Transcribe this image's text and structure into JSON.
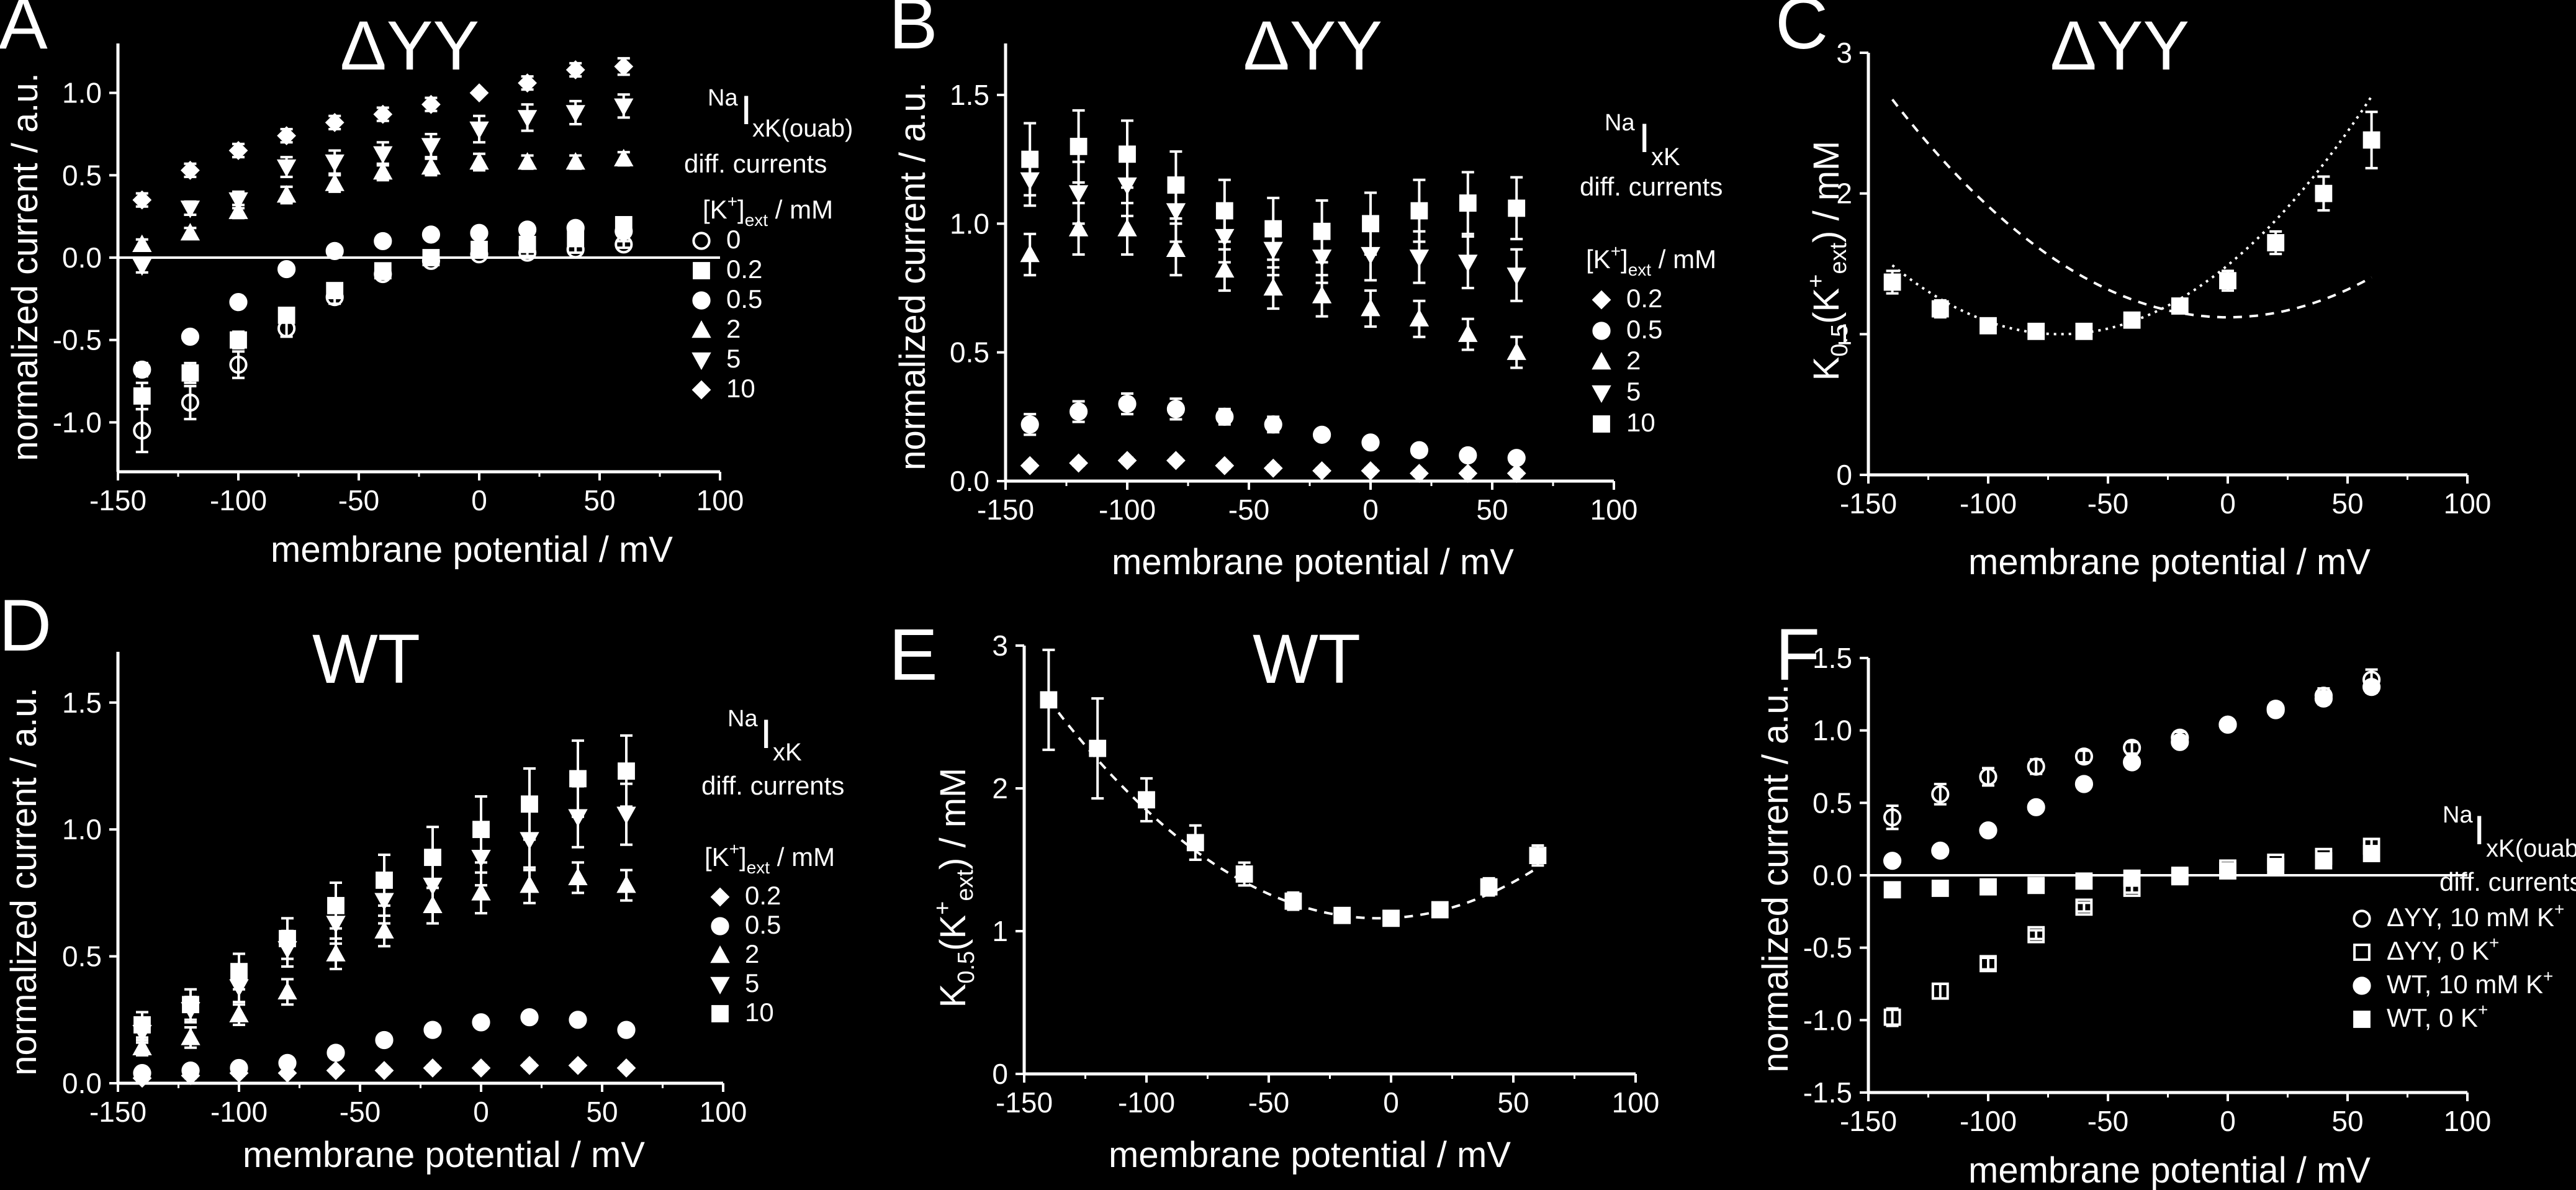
{
  "chart_data": [
    {
      "panel": "A",
      "type": "scatter",
      "title": "ΔYY",
      "xlabel": "membrane potential / mV",
      "ylabel": "normalized current / a.u.",
      "xlim": [
        -150,
        100
      ],
      "ylim": [
        -1.3,
        1.3
      ],
      "xticks": [
        "-150",
        "-100",
        "-50",
        "0",
        "50",
        "100"
      ],
      "yticks": [
        "-1.0",
        "-0.5",
        "0.0",
        "0.5",
        "1.0"
      ],
      "zero_line": true,
      "grid": false,
      "legend": {
        "position": "right",
        "header1_sup": "Na",
        "header1_main": "I",
        "header1_sub": "xK(ouab)",
        "header2": "diff. currents",
        "header3": "[K",
        "header3_sup": "+",
        "header3_sub": "]",
        "header3_tail": "ext",
        "header3_unit": " / mM"
      },
      "x": [
        -140,
        -120,
        -100,
        -80,
        -60,
        -40,
        -20,
        0,
        20,
        40,
        60
      ],
      "series": [
        {
          "name": "0",
          "marker": "circle-open",
          "values": [
            -1.05,
            -0.88,
            -0.65,
            -0.43,
            -0.24,
            -0.1,
            -0.02,
            0.02,
            0.03,
            0.05,
            0.08
          ],
          "err": [
            0.13,
            0.1,
            0.08,
            0.05,
            0.04,
            0.03,
            0.02,
            0.02,
            0.02,
            0.02,
            0.02
          ]
        },
        {
          "name": "0.2",
          "marker": "square",
          "values": [
            -0.84,
            -0.7,
            -0.5,
            -0.35,
            -0.2,
            -0.08,
            0.0,
            0.05,
            0.08,
            0.12,
            0.2
          ],
          "err": [
            0.08,
            0.06,
            0.05,
            0.04,
            0.03,
            0.03,
            0.02,
            0.02,
            0.02,
            0.02,
            0.03
          ]
        },
        {
          "name": "0.5",
          "marker": "circle",
          "values": [
            -0.68,
            -0.48,
            -0.27,
            -0.07,
            0.04,
            0.1,
            0.14,
            0.15,
            0.17,
            0.18,
            0.16
          ],
          "err": [
            0.04,
            0.03,
            0.02,
            0.02,
            0.02,
            0.02,
            0.02,
            0.02,
            0.02,
            0.02,
            0.02
          ]
        },
        {
          "name": "2",
          "marker": "triangle-up",
          "values": [
            0.08,
            0.15,
            0.28,
            0.38,
            0.45,
            0.52,
            0.55,
            0.58,
            0.58,
            0.58,
            0.6
          ],
          "err": [
            0.03,
            0.03,
            0.04,
            0.05,
            0.05,
            0.05,
            0.05,
            0.05,
            0.04,
            0.04,
            0.04
          ]
        },
        {
          "name": "5",
          "marker": "triangle-down",
          "values": [
            -0.05,
            0.3,
            0.35,
            0.55,
            0.58,
            0.63,
            0.68,
            0.78,
            0.85,
            0.88,
            0.92
          ],
          "err": [
            0.04,
            0.04,
            0.05,
            0.06,
            0.07,
            0.07,
            0.07,
            0.08,
            0.08,
            0.07,
            0.07
          ]
        },
        {
          "name": "10",
          "marker": "diamond",
          "values": [
            0.35,
            0.53,
            0.65,
            0.74,
            0.82,
            0.87,
            0.93,
            1.0,
            1.06,
            1.14,
            1.16
          ],
          "err": [
            0.04,
            0.04,
            0.04,
            0.04,
            0.04,
            0.04,
            0.04,
            0.0,
            0.04,
            0.04,
            0.05
          ]
        }
      ]
    },
    {
      "panel": "B",
      "type": "scatter",
      "title": "ΔYY",
      "xlabel": "membrane potential / mV",
      "ylabel": "normalized current / a.u.",
      "xlim": [
        -150,
        100
      ],
      "ylim": [
        0,
        1.7
      ],
      "xticks": [
        "-150",
        "-100",
        "-50",
        "0",
        "50",
        "100"
      ],
      "yticks": [
        "0.0",
        "0.5",
        "1.0",
        "1.5"
      ],
      "zero_line": false,
      "grid": false,
      "legend": {
        "position": "right",
        "header1_sup": "Na",
        "header1_main": "I",
        "header1_sub": "xK",
        "header2": "diff. currents",
        "header3": "[K",
        "header3_sup": "+",
        "header3_sub": "]",
        "header3_tail": "ext",
        "header3_unit": " / mM"
      },
      "x": [
        -140,
        -120,
        -100,
        -80,
        -60,
        -40,
        -20,
        0,
        20,
        40,
        60
      ],
      "series": [
        {
          "name": "0.2",
          "marker": "diamond",
          "values": [
            0.06,
            0.07,
            0.08,
            0.08,
            0.06,
            0.05,
            0.04,
            0.04,
            0.03,
            0.03,
            0.03
          ],
          "err": [
            0.01,
            0.01,
            0.01,
            0.01,
            0.01,
            0.01,
            0.01,
            0.01,
            0.01,
            0.01,
            0.01
          ]
        },
        {
          "name": "0.5",
          "marker": "circle",
          "values": [
            0.22,
            0.27,
            0.3,
            0.28,
            0.25,
            0.22,
            0.18,
            0.15,
            0.12,
            0.1,
            0.09
          ],
          "err": [
            0.04,
            0.04,
            0.04,
            0.04,
            0.03,
            0.03,
            0.02,
            0.02,
            0.02,
            0.02,
            0.02
          ]
        },
        {
          "name": "2",
          "marker": "triangle-up",
          "values": [
            0.88,
            0.98,
            0.98,
            0.9,
            0.82,
            0.75,
            0.72,
            0.67,
            0.63,
            0.57,
            0.5
          ],
          "err": [
            0.08,
            0.1,
            0.1,
            0.1,
            0.08,
            0.08,
            0.08,
            0.07,
            0.07,
            0.06,
            0.06
          ]
        },
        {
          "name": "5",
          "marker": "triangle-down",
          "values": [
            1.17,
            1.12,
            1.15,
            1.05,
            0.95,
            0.9,
            0.87,
            0.88,
            0.87,
            0.85,
            0.8
          ],
          "err": [
            0.1,
            0.12,
            0.12,
            0.12,
            0.1,
            0.1,
            0.1,
            0.1,
            0.1,
            0.1,
            0.1
          ]
        },
        {
          "name": "10",
          "marker": "square",
          "values": [
            1.25,
            1.3,
            1.27,
            1.15,
            1.05,
            0.98,
            0.97,
            1.0,
            1.05,
            1.08,
            1.06
          ],
          "err": [
            0.14,
            0.14,
            0.13,
            0.13,
            0.12,
            0.12,
            0.12,
            0.12,
            0.12,
            0.12,
            0.12
          ]
        }
      ]
    },
    {
      "panel": "C",
      "type": "scatter",
      "title": "ΔYY",
      "xlabel": "membrane potential / mV",
      "ylabel_main": "K",
      "ylabel_sub": "0.5",
      "ylabel_mid": "(K",
      "ylabel_sup2": "+",
      "ylabel_sub2": "ext",
      "ylabel_tail": ") / mM",
      "xlim": [
        -150,
        100
      ],
      "ylim": [
        0,
        3
      ],
      "xticks": [
        "-150",
        "-100",
        "-50",
        "0",
        "50",
        "100"
      ],
      "yticks": [
        "0",
        "1",
        "2",
        "3"
      ],
      "grid": false,
      "x": [
        -140,
        -120,
        -100,
        -80,
        -60,
        -40,
        -20,
        0,
        20,
        40,
        60
      ],
      "values": [
        1.37,
        1.18,
        1.06,
        1.02,
        1.02,
        1.1,
        1.2,
        1.38,
        1.65,
        2.0,
        2.38
      ],
      "err": [
        0.08,
        0.06,
        0.05,
        0.05,
        0.05,
        0.05,
        0.05,
        0.07,
        0.08,
        0.12,
        0.2
      ],
      "fit_quadratic": {
        "vertex_x": -70,
        "vertex_y": 1.0,
        "a": 0.0001,
        "x_range": [
          -140,
          60
        ],
        "style": "dotted"
      },
      "reference_curve": {
        "vertex_x": 0,
        "vertex_y": 1.12,
        "a": 7.9e-05,
        "x_range": [
          -140,
          60
        ],
        "style": "dashed"
      }
    },
    {
      "panel": "D",
      "type": "scatter",
      "title": "WT",
      "xlabel": "membrane potential / mV",
      "ylabel": "normalized current / a.u.",
      "xlim": [
        -150,
        100
      ],
      "ylim": [
        0,
        1.7
      ],
      "xticks": [
        "-150",
        "-100",
        "-50",
        "0",
        "50",
        "100"
      ],
      "yticks": [
        "0.0",
        "0.5",
        "1.0",
        "1.5"
      ],
      "zero_line": false,
      "grid": false,
      "legend": {
        "position": "right",
        "header1_sup": "Na",
        "header1_main": "I",
        "header1_sub": "xK",
        "header2": "diff. currents",
        "header3": "[K",
        "header3_sup": "+",
        "header3_sub": "]",
        "header3_tail": "ext",
        "header3_unit": " / mM"
      },
      "x": [
        -140,
        -120,
        -100,
        -80,
        -60,
        -40,
        -20,
        0,
        20,
        40,
        60
      ],
      "series": [
        {
          "name": "0.2",
          "marker": "diamond",
          "values": [
            0.02,
            0.03,
            0.04,
            0.04,
            0.05,
            0.05,
            0.06,
            0.06,
            0.07,
            0.07,
            0.06
          ],
          "err": [
            0.01,
            0.01,
            0.01,
            0.01,
            0.01,
            0.01,
            0.01,
            0.01,
            0.01,
            0.01,
            0.01
          ]
        },
        {
          "name": "0.5",
          "marker": "circle",
          "values": [
            0.04,
            0.05,
            0.06,
            0.08,
            0.12,
            0.17,
            0.21,
            0.24,
            0.26,
            0.25,
            0.21
          ],
          "err": [
            0.01,
            0.01,
            0.01,
            0.01,
            0.02,
            0.02,
            0.02,
            0.02,
            0.02,
            0.02,
            0.02
          ]
        },
        {
          "name": "2",
          "marker": "triangle-up",
          "values": [
            0.14,
            0.18,
            0.27,
            0.36,
            0.51,
            0.6,
            0.7,
            0.75,
            0.78,
            0.81,
            0.78
          ],
          "err": [
            0.03,
            0.04,
            0.04,
            0.05,
            0.06,
            0.06,
            0.07,
            0.08,
            0.07,
            0.06,
            0.06
          ]
        },
        {
          "name": "5",
          "marker": "triangle-down",
          "values": [
            0.2,
            0.29,
            0.38,
            0.53,
            0.63,
            0.72,
            0.78,
            0.89,
            0.96,
            1.05,
            1.06
          ],
          "err": [
            0.04,
            0.05,
            0.06,
            0.07,
            0.08,
            0.09,
            0.1,
            0.11,
            0.12,
            0.12,
            0.12
          ]
        },
        {
          "name": "10",
          "marker": "square",
          "values": [
            0.23,
            0.31,
            0.44,
            0.57,
            0.7,
            0.8,
            0.89,
            1.0,
            1.1,
            1.2,
            1.23
          ],
          "err": [
            0.05,
            0.06,
            0.07,
            0.08,
            0.09,
            0.1,
            0.12,
            0.13,
            0.14,
            0.15,
            0.14
          ]
        }
      ]
    },
    {
      "panel": "E",
      "type": "scatter",
      "title": "WT",
      "xlabel": "membrane potential / mV",
      "ylabel_main": "K",
      "ylabel_sub": "0.5",
      "ylabel_mid": "(K",
      "ylabel_sup2": "+",
      "ylabel_sub2": "ext",
      "ylabel_tail": ") / mM",
      "xlim": [
        -150,
        100
      ],
      "ylim": [
        0,
        3
      ],
      "xticks": [
        "-150",
        "-100",
        "-50",
        "0",
        "50",
        "100"
      ],
      "yticks": [
        "0",
        "1",
        "2",
        "3"
      ],
      "grid": false,
      "x": [
        -140,
        -120,
        -100,
        -80,
        -60,
        -40,
        -20,
        0,
        20,
        40,
        60
      ],
      "values": [
        2.62,
        2.28,
        1.92,
        1.62,
        1.4,
        1.21,
        1.11,
        1.09,
        1.15,
        1.31,
        1.53
      ],
      "err": [
        0.35,
        0.35,
        0.15,
        0.12,
        0.08,
        0.06,
        0.04,
        0.04,
        0.05,
        0.06,
        0.07
      ],
      "fit_quadratic": {
        "vertex_x": -5,
        "vertex_y": 1.09,
        "a": 8.4e-05,
        "x_range": [
          -140,
          60
        ],
        "style": "dashed"
      }
    },
    {
      "panel": "F",
      "type": "scatter",
      "xlabel": "membrane potential / mV",
      "ylabel": "normalized current / a.u.",
      "xlim": [
        -150,
        100
      ],
      "ylim": [
        -1.5,
        1.5
      ],
      "xticks": [
        "-150",
        "-100",
        "-50",
        "0",
        "50",
        "100"
      ],
      "yticks": [
        "-1.5",
        "-1.0",
        "-0.5",
        "0.0",
        "0.5",
        "1.0",
        "1.5"
      ],
      "zero_line": true,
      "grid": false,
      "legend": {
        "position": "bottom-right",
        "header1_sup": "Na",
        "header1_main": "I",
        "header1_sub": "xK(ouab)",
        "header2": "diff. currents"
      },
      "x": [
        -140,
        -120,
        -100,
        -80,
        -60,
        -40,
        -20,
        0,
        20,
        40,
        60
      ],
      "series": [
        {
          "name": "ΔYY, 10 mM K",
          "name_sup": "+",
          "marker": "circle-open",
          "values": [
            0.4,
            0.56,
            0.68,
            0.75,
            0.82,
            0.88,
            0.95,
            1.04,
            1.15,
            1.24,
            1.35
          ],
          "err": [
            0.08,
            0.07,
            0.06,
            0.05,
            0.04,
            0.04,
            0.04,
            0.03,
            0.04,
            0.05,
            0.07
          ]
        },
        {
          "name": "ΔYY, 0 K",
          "name_sup": "+",
          "marker": "square-open",
          "values": [
            -0.98,
            -0.8,
            -0.61,
            -0.41,
            -0.22,
            -0.09,
            -0.01,
            0.05,
            0.09,
            0.13,
            0.2
          ],
          "err": [
            0.06,
            0.05,
            0.04,
            0.03,
            0.03,
            0.03,
            0.02,
            0.02,
            0.02,
            0.02,
            0.05
          ]
        },
        {
          "name": "WT, 10 mM K",
          "name_sup": "+",
          "marker": "circle",
          "values": [
            0.1,
            0.17,
            0.31,
            0.47,
            0.63,
            0.78,
            0.92,
            1.04,
            1.14,
            1.22,
            1.3
          ],
          "err": [
            0.03,
            0.03,
            0.03,
            0.03,
            0.03,
            0.03,
            0.03,
            0.02,
            0.03,
            0.04,
            0.04
          ]
        },
        {
          "name": "WT, 0 K",
          "name_sup": "+",
          "marker": "square",
          "values": [
            -0.1,
            -0.09,
            -0.08,
            -0.07,
            -0.04,
            -0.02,
            0.0,
            0.03,
            0.06,
            0.1,
            0.15
          ],
          "err": [
            0.02,
            0.02,
            0.02,
            0.02,
            0.02,
            0.02,
            0.02,
            0.02,
            0.02,
            0.02,
            0.02
          ]
        }
      ]
    }
  ]
}
